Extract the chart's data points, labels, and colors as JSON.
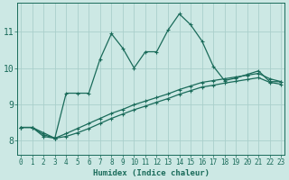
{
  "xlabel": "Humidex (Indice chaleur)",
  "background_color": "#cce8e4",
  "line_color": "#1a6b5a",
  "grid_color": "#aacfcb",
  "x_ticks": [
    0,
    1,
    2,
    3,
    4,
    5,
    6,
    7,
    8,
    9,
    10,
    11,
    12,
    13,
    14,
    15,
    16,
    17,
    18,
    19,
    20,
    21,
    22,
    23
  ],
  "y_ticks": [
    8,
    9,
    10,
    11
  ],
  "ylim": [
    7.6,
    11.8
  ],
  "xlim": [
    -0.3,
    23.3
  ],
  "line1_x": [
    0,
    1,
    2,
    3,
    4,
    5,
    6,
    7,
    8,
    9,
    10,
    11,
    12,
    13,
    14,
    15,
    16,
    17,
    18,
    19,
    20,
    21,
    22,
    23
  ],
  "line1_y": [
    8.35,
    8.35,
    8.15,
    8.05,
    9.3,
    9.3,
    9.3,
    10.25,
    10.95,
    10.55,
    10.0,
    10.45,
    10.45,
    11.05,
    11.5,
    11.2,
    10.75,
    10.05,
    9.65,
    9.72,
    9.82,
    9.92,
    9.62,
    9.62
  ],
  "line2_x": [
    0,
    1,
    2,
    3,
    4,
    5,
    6,
    7,
    8,
    9,
    10,
    11,
    12,
    13,
    14,
    15,
    16,
    17,
    18,
    19,
    20,
    21,
    22,
    23
  ],
  "line2_y": [
    8.35,
    8.35,
    8.2,
    8.05,
    8.18,
    8.32,
    8.46,
    8.6,
    8.74,
    8.85,
    8.98,
    9.08,
    9.18,
    9.28,
    9.4,
    9.5,
    9.6,
    9.65,
    9.7,
    9.75,
    9.8,
    9.85,
    9.7,
    9.62
  ],
  "line3_x": [
    0,
    1,
    2,
    3,
    4,
    5,
    6,
    7,
    8,
    9,
    10,
    11,
    12,
    13,
    14,
    15,
    16,
    17,
    18,
    19,
    20,
    21,
    22,
    23
  ],
  "line3_y": [
    8.35,
    8.35,
    8.1,
    8.05,
    8.1,
    8.2,
    8.32,
    8.46,
    8.6,
    8.72,
    8.84,
    8.94,
    9.05,
    9.15,
    9.27,
    9.37,
    9.47,
    9.52,
    9.58,
    9.63,
    9.68,
    9.73,
    9.6,
    9.55
  ],
  "xlabel_fontsize": 6.5,
  "tick_fontsize": 5.5,
  "ytick_fontsize": 7.0,
  "linewidth": 0.9,
  "markersize": 3.5
}
